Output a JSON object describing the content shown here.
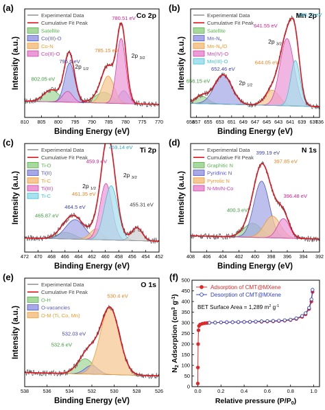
{
  "figure": {
    "panels": [
      {
        "key": "a",
        "label": "(a)",
        "title": "Co 2p",
        "xlabel": "Binding Energy (eV)",
        "ylabel": "Intensity (a.u.)"
      },
      {
        "key": "b",
        "label": "(b)",
        "title": "Mn 2p",
        "xlabel": "Binding Energy (eV)",
        "ylabel": "Intensity (a.u.)"
      },
      {
        "key": "c",
        "label": "(c)",
        "title": "Ti 2p",
        "xlabel": "Binding Energy (eV)",
        "ylabel": "Intensity (a.u.)"
      },
      {
        "key": "d",
        "label": "(d)",
        "title": "N 1s",
        "xlabel": "Binding Energy (eV)",
        "ylabel": "Intensity (a.u.)"
      },
      {
        "key": "e",
        "label": "(e)",
        "title": "O 1s",
        "xlabel": "Binding Energy (eV)",
        "ylabel": "Intensity (a.u.)"
      },
      {
        "key": "f",
        "label": "(f)",
        "title": "",
        "xlabel": "Relative pressure (P/P",
        "xlabel_sub": "0",
        "xlabel_end": ")",
        "ylabel": "N",
        "ylabel_sub": "2",
        "ylabel_mid": " Adsorption (cm",
        "ylabel_sup1": "3",
        "ylabel_mid2": " g",
        "ylabel_sup2": "-1",
        "ylabel_end": ")"
      }
    ]
  },
  "chart_data": [
    {
      "panel": "a",
      "type": "line",
      "title": "Co 2p",
      "xlabel": "Binding Energy (eV)",
      "ylabel": "Intensity (a.u.)",
      "x_range": [
        810,
        770
      ],
      "xticks": [
        810,
        805,
        800,
        795,
        790,
        785,
        780,
        775,
        770
      ],
      "baseline": 0.12,
      "legend": [
        "Experimental Data",
        "Cumulative Fit Peak",
        "Satellite",
        "Co(III)-O",
        "Co-N",
        "Co(II)-O"
      ],
      "components": [
        {
          "name": "Satellite",
          "color": "#57b34f",
          "fill": "#a7d89c",
          "peaks": [
            {
              "center": 802.05,
              "height": 0.11,
              "width": 2.3
            },
            {
              "center": 786.4,
              "height": 0.1,
              "width": 2.6
            }
          ]
        },
        {
          "name": "Co(III)-O",
          "color": "#5356c9",
          "fill": "#a7a9e6",
          "peaks": [
            {
              "center": 796.6,
              "height": 0.36,
              "width": 1.5
            },
            {
              "center": 780.51,
              "height": 0.12,
              "width": 1.4
            }
          ]
        },
        {
          "name": "Co-N",
          "color": "#f09a2c",
          "fill": "#f6c896",
          "peaks": [
            {
              "center": 785.15,
              "height": 0.25,
              "width": 1.8
            }
          ]
        },
        {
          "name": "Co(II)-O",
          "color": "#d63fad",
          "fill": "#eb9cd7",
          "peaks": [
            {
              "center": 781.3,
              "height": 0.6,
              "width": 1.35
            },
            {
              "center": 797.2,
              "height": 0.1,
              "width": 1.5
            }
          ]
        }
      ],
      "annotations": [
        {
          "text": "780.51 eV",
          "x": 780.51,
          "y": 0.9,
          "color": "#d6208f"
        },
        {
          "text": "785.15 eV",
          "x": 785.6,
          "y": 0.6,
          "color": "#e8821e"
        },
        {
          "text": "796.6 eV",
          "x": 796.6,
          "y": 0.5,
          "color": "#3b3fb5"
        },
        {
          "text": "802.05 eV",
          "x": 804.5,
          "y": 0.34,
          "color": "#3a9a3a"
        },
        {
          "text": "2p 1/2",
          "x": 793.0,
          "y": 0.45,
          "color": "#111111"
        },
        {
          "text": "2p 3/2",
          "x": 776.2,
          "y": 0.55,
          "color": "#111111"
        }
      ]
    },
    {
      "panel": "b",
      "type": "line",
      "title": "Mn 2p",
      "xlabel": "Binding Energy (eV)",
      "ylabel": "Intensity (a.u.)",
      "x_range": [
        658,
        636
      ],
      "xticks": [
        658,
        657,
        655,
        653,
        651,
        649,
        647,
        645,
        643,
        641,
        639,
        637,
        636
      ],
      "baseline": 0.1,
      "legend": [
        "Experimental Data",
        "Cumulative Fit Peak",
        "Satellite",
        "Mn-Nx",
        "Mn-Nx/O",
        "Mn(IV)-O",
        "Mn(III)-O"
      ],
      "components": [
        {
          "name": "Satellite",
          "color": "#57b34f",
          "fill": "#a7d89c",
          "peaks": [
            {
              "center": 656.15,
              "height": 0.07,
              "width": 1.1
            }
          ]
        },
        {
          "name": "Mn-Nx",
          "color": "#5356c9",
          "fill": "#a7a9e6",
          "peaks": [
            {
              "center": 652.46,
              "height": 0.27,
              "width": 1.5
            }
          ]
        },
        {
          "name": "Mn-Nx/O",
          "color": "#f09a2c",
          "fill": "#f6c896",
          "peaks": [
            {
              "center": 644.05,
              "height": 0.14,
              "width": 1.2
            }
          ]
        },
        {
          "name": "Mn(IV)-O",
          "color": "#d63fad",
          "fill": "#eb9cd7",
          "peaks": [
            {
              "center": 641.55,
              "height": 0.62,
              "width": 1.2
            }
          ]
        },
        {
          "name": "Mn(III)-O",
          "color": "#3ec0d8",
          "fill": "#a8e2ee",
          "peaks": [
            {
              "center": 640.12,
              "height": 0.42,
              "width": 0.8
            }
          ]
        }
      ],
      "annotations": [
        {
          "text": "641.55 eV",
          "x": 645.2,
          "y": 0.83,
          "color": "#d6208f"
        },
        {
          "text": "640.12 eV",
          "x": 637.6,
          "y": 0.93,
          "color": "#2aa9c9"
        },
        {
          "text": "644.05 eV",
          "x": 645.0,
          "y": 0.49,
          "color": "#e8821e"
        },
        {
          "text": "652.46 eV",
          "x": 652.46,
          "y": 0.43,
          "color": "#3b3fb5"
        },
        {
          "text": "656.15 eV",
          "x": 656.7,
          "y": 0.32,
          "color": "#3a9a3a"
        },
        {
          "text": "2p 1/2",
          "x": 648.6,
          "y": 0.3,
          "color": "#111111"
        },
        {
          "text": "2p 3/2",
          "x": 643.6,
          "y": 0.68,
          "color": "#111111"
        }
      ]
    },
    {
      "panel": "c",
      "type": "line",
      "title": "Ti 2p",
      "xlabel": "Binding Energy (eV)",
      "ylabel": "Intensity (a.u.)",
      "x_range": [
        472,
        452
      ],
      "xticks": [
        472,
        470,
        468,
        466,
        464,
        462,
        460,
        458,
        456,
        454,
        452
      ],
      "baseline": 0.1,
      "legend": [
        "Experimental Data",
        "Cumulative Fit Peak",
        "Ti-O",
        "Ti(II)",
        "Ti-C",
        "Ti(III)",
        "Ti-C"
      ],
      "components": [
        {
          "name": "Ti-O",
          "color": "#57b34f",
          "fill": "#a7d89c",
          "peaks": [
            {
              "center": 465.87,
              "height": 0.06,
              "width": 1.3
            }
          ]
        },
        {
          "name": "Ti(II)",
          "color": "#5356c9",
          "fill": "#a7a9e6",
          "peaks": [
            {
              "center": 464.5,
              "height": 0.18,
              "width": 1.4
            }
          ]
        },
        {
          "name": "Ti-C",
          "color": "#f09a2c",
          "fill": "#f6c896",
          "peaks": [
            {
              "center": 461.35,
              "height": 0.1,
              "width": 0.9
            }
          ]
        },
        {
          "name": "Ti-O",
          "color": "#d63fad",
          "fill": "#eb9cd7",
          "peaks": [
            {
              "center": 459.9,
              "height": 0.52,
              "width": 0.9
            }
          ]
        },
        {
          "name": "Ti(III)",
          "color": "#3ec0d8",
          "fill": "#a8e2ee",
          "peaks": [
            {
              "center": 459.14,
              "height": 0.5,
              "width": 1.0
            }
          ]
        },
        {
          "name": "Ti-C",
          "color": "#9a9a9a",
          "fill": "#d0d0d0",
          "peaks": [
            {
              "center": 455.31,
              "height": 0.12,
              "width": 0.8
            }
          ]
        }
      ],
      "annotations": [
        {
          "text": "459.14 eV",
          "x": 457.7,
          "y": 0.95,
          "color": "#2aa9c9"
        },
        {
          "text": "459.9 eV",
          "x": 461.3,
          "y": 0.82,
          "color": "#d6208f"
        },
        {
          "text": "461.35 eV",
          "x": 463.2,
          "y": 0.52,
          "color": "#e8821e"
        },
        {
          "text": "464.5 eV",
          "x": 464.5,
          "y": 0.4,
          "color": "#3b3fb5"
        },
        {
          "text": "465.87 eV",
          "x": 468.7,
          "y": 0.32,
          "color": "#3a9a3a"
        },
        {
          "text": "455.31 eV",
          "x": 454.6,
          "y": 0.42,
          "color": "#333333"
        },
        {
          "text": "2p 1/2",
          "x": 462.4,
          "y": 0.59,
          "color": "#111111"
        },
        {
          "text": "2p 3/2",
          "x": 456.3,
          "y": 0.69,
          "color": "#111111"
        }
      ]
    },
    {
      "panel": "d",
      "type": "line",
      "title": "N 1s",
      "xlabel": "Binding Energy (eV)",
      "ylabel": "Intensity (a.u.)",
      "x_range": [
        408,
        392
      ],
      "xticks": [
        408,
        406,
        404,
        402,
        400,
        398,
        396,
        394,
        392
      ],
      "baseline": 0.12,
      "legend": [
        "Experimental Data",
        "Cumulative Fit Peak",
        "Graphitic N",
        "Pyridinic N",
        "Pyrrolic N",
        "N-Mn/N-Co"
      ],
      "components": [
        {
          "name": "Graphitic N",
          "color": "#57b34f",
          "fill": "#a7d89c",
          "peaks": [
            {
              "center": 400.3,
              "height": 0.13,
              "width": 1.1
            }
          ]
        },
        {
          "name": "Pyridinic N",
          "color": "#5356c9",
          "fill": "#a7a9e6",
          "peaks": [
            {
              "center": 399.19,
              "height": 0.52,
              "width": 0.95
            }
          ]
        },
        {
          "name": "Pyrrolic N",
          "color": "#f09a2c",
          "fill": "#f6c896",
          "peaks": [
            {
              "center": 397.85,
              "height": 0.2,
              "width": 1.0
            }
          ]
        },
        {
          "name": "N-Mn/N-Co",
          "color": "#d63fad",
          "fill": "#eb9cd7",
          "peaks": [
            {
              "center": 396.48,
              "height": 0.18,
              "width": 0.75
            }
          ]
        }
      ],
      "annotations": [
        {
          "text": "399.19 eV",
          "x": 398.4,
          "y": 0.9,
          "color": "#3b3fb5"
        },
        {
          "text": "397.85 eV",
          "x": 396.2,
          "y": 0.82,
          "color": "#e8821e"
        },
        {
          "text": "400.3 eV",
          "x": 402.2,
          "y": 0.37,
          "color": "#3a9a3a"
        },
        {
          "text": "396.48 eV",
          "x": 395.0,
          "y": 0.5,
          "color": "#d6208f"
        }
      ]
    },
    {
      "panel": "e",
      "type": "line",
      "title": "O 1s",
      "xlabel": "Binding Energy (eV)",
      "ylabel": "Intensity (a.u.)",
      "x_range": [
        538,
        526
      ],
      "xticks": [
        538,
        536,
        534,
        532,
        530,
        528,
        526
      ],
      "baseline": 0.1,
      "legend": [
        "Experimental Data",
        "Cumulative Fit Peak",
        "O-H",
        "O-vacancies",
        "O-M (Ti, Co, Mn)"
      ],
      "components": [
        {
          "name": "O-H",
          "color": "#57b34f",
          "fill": "#a7d89c",
          "peaks": [
            {
              "center": 532.6,
              "height": 0.14,
              "width": 0.75
            }
          ]
        },
        {
          "name": "O-vacancies",
          "color": "#5356c9",
          "fill": "#a7a9e6",
          "peaks": [
            {
              "center": 532.03,
              "height": 0.08,
              "width": 0.6
            }
          ]
        },
        {
          "name": "O-M (Ti, Co, Mn)",
          "color": "#f09a2c",
          "fill": "#f6c896",
          "peaks": [
            {
              "center": 530.4,
              "height": 0.62,
              "width": 0.85
            }
          ]
        }
      ],
      "annotations": [
        {
          "text": "530.4 eV",
          "x": 529.7,
          "y": 0.82,
          "color": "#e8821e"
        },
        {
          "text": "532.03 eV",
          "x": 533.6,
          "y": 0.47,
          "color": "#3b3fb5"
        },
        {
          "text": "532.6 eV",
          "x": 534.7,
          "y": 0.37,
          "color": "#3a9a3a"
        }
      ]
    },
    {
      "panel": "f",
      "type": "line",
      "title": "",
      "xlabel": "Relative pressure (P/P0)",
      "ylabel": "N2 Adsorption (cm3 g-1)",
      "xlim": [
        -0.05,
        1.05
      ],
      "ylim": [
        0,
        500
      ],
      "xticks": [
        0.0,
        0.2,
        0.4,
        0.6,
        0.8,
        1.0
      ],
      "yticks": [
        0,
        50,
        100,
        150,
        200,
        250,
        300,
        350,
        400,
        450,
        500
      ],
      "series": [
        {
          "name": "Adsorption of CMT@MXene",
          "color": "#e02828",
          "marker": "circle-filled",
          "x": [
            0.0,
            0.001,
            0.003,
            0.006,
            0.01,
            0.02,
            0.04,
            0.06,
            0.08,
            0.1,
            0.15,
            0.2,
            0.25,
            0.3,
            0.35,
            0.4,
            0.45,
            0.5,
            0.55,
            0.6,
            0.65,
            0.7,
            0.75,
            0.8,
            0.85,
            0.9,
            0.93,
            0.96,
            0.98,
            0.99
          ],
          "y": [
            15,
            90,
            200,
            265,
            285,
            292,
            296,
            298,
            299,
            300,
            301,
            302,
            302,
            303,
            303,
            304,
            304,
            305,
            305,
            306,
            307,
            308,
            310,
            313,
            318,
            328,
            340,
            365,
            400,
            445
          ]
        },
        {
          "name": "Desorption of CMT@MXene",
          "color": "#3040c0",
          "marker": "circle-open",
          "x": [
            0.99,
            0.98,
            0.96,
            0.93,
            0.9,
            0.85,
            0.8,
            0.75,
            0.7,
            0.65,
            0.6,
            0.55,
            0.5,
            0.45,
            0.4,
            0.35,
            0.3,
            0.25,
            0.2,
            0.15,
            0.1
          ],
          "y": [
            455,
            410,
            370,
            345,
            332,
            321,
            315,
            312,
            310,
            309,
            308,
            307,
            306,
            305,
            304,
            304,
            303,
            303,
            302,
            301,
            300
          ]
        }
      ],
      "annotation": "BET Surface Area = 1,289 m2 g-1",
      "legend_placement": "top-left"
    }
  ]
}
